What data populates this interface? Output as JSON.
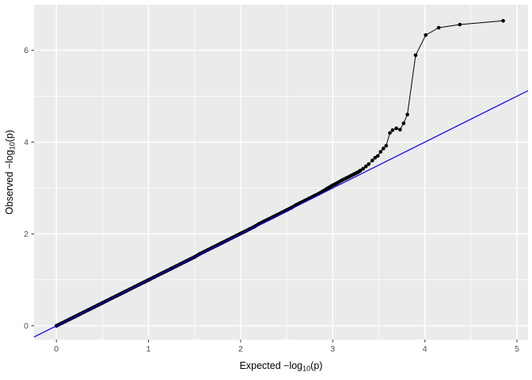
{
  "chart_data": {
    "type": "scatter",
    "title": "",
    "xlabel": {
      "parts": [
        "Expected  −log",
        "10",
        "(p)"
      ],
      "plain": "Expected −log10(p)"
    },
    "ylabel": {
      "parts": [
        "Observed  −log",
        "10",
        "(p)"
      ],
      "plain": "Observed −log10(p)"
    },
    "xlim": [
      -0.2425,
      5.12
    ],
    "ylim": [
      -0.3,
      6.99
    ],
    "x_ticks": [
      0,
      1,
      2,
      3,
      4,
      5
    ],
    "x_tick_labels": [
      "0",
      "1",
      "2",
      "3",
      "4",
      "5"
    ],
    "y_ticks": [
      0,
      2,
      4,
      6
    ],
    "y_tick_labels": [
      "0",
      "2",
      "4",
      "6"
    ],
    "x_minor": [
      0.5,
      1.5,
      2.5,
      3.5,
      4.5
    ],
    "y_minor": [
      1,
      3,
      5
    ],
    "grid": true,
    "legend_position": "none",
    "abline": {
      "intercept": 0,
      "slope": 1,
      "color": "#0000F0",
      "width": 1.2
    },
    "colors": {
      "panel_background": "#EBEBEB",
      "outer_background": "#FFFFFF",
      "grid_major": "#FFFFFF",
      "grid_minor": "#FFFFFF",
      "points": "#000000",
      "tick_marks": "#333333",
      "tick_labels": "#4D4D4D",
      "axis_titles": "#000000"
    },
    "series": [
      {
        "name": "observed-vs-expected-dense-band",
        "style": "band",
        "points": [
          [
            0,
            0
          ],
          [
            0.05,
            0.05
          ],
          [
            0.1,
            0.1
          ],
          [
            0.15,
            0.15
          ],
          [
            0.2,
            0.2
          ],
          [
            0.25,
            0.25
          ],
          [
            0.3,
            0.3
          ],
          [
            0.35,
            0.35
          ],
          [
            0.4,
            0.4
          ],
          [
            0.45,
            0.45
          ],
          [
            0.5,
            0.5
          ],
          [
            0.55,
            0.55
          ],
          [
            0.6,
            0.6
          ],
          [
            0.65,
            0.65
          ],
          [
            0.7,
            0.7
          ],
          [
            0.75,
            0.75
          ],
          [
            0.8,
            0.8
          ],
          [
            0.85,
            0.85
          ],
          [
            0.9,
            0.9
          ],
          [
            0.95,
            0.95
          ],
          [
            1,
            1
          ],
          [
            1.05,
            1.05
          ],
          [
            1.1,
            1.1
          ],
          [
            1.15,
            1.15
          ],
          [
            1.2,
            1.2
          ],
          [
            1.25,
            1.25
          ],
          [
            1.3,
            1.3
          ],
          [
            1.35,
            1.35
          ],
          [
            1.4,
            1.4
          ],
          [
            1.45,
            1.45
          ],
          [
            1.5,
            1.5
          ],
          [
            1.55,
            1.56
          ],
          [
            1.6,
            1.61
          ],
          [
            1.65,
            1.66
          ],
          [
            1.7,
            1.71
          ],
          [
            1.75,
            1.76
          ],
          [
            1.8,
            1.81
          ],
          [
            1.85,
            1.86
          ],
          [
            1.9,
            1.91
          ],
          [
            1.95,
            1.96
          ],
          [
            2,
            2.01
          ],
          [
            2.05,
            2.06
          ],
          [
            2.1,
            2.11
          ],
          [
            2.15,
            2.16
          ],
          [
            2.2,
            2.22
          ],
          [
            2.25,
            2.27
          ],
          [
            2.3,
            2.32
          ],
          [
            2.35,
            2.37
          ],
          [
            2.4,
            2.42
          ],
          [
            2.45,
            2.47
          ],
          [
            2.5,
            2.52
          ],
          [
            2.55,
            2.57
          ],
          [
            2.6,
            2.63
          ],
          [
            2.65,
            2.68
          ],
          [
            2.7,
            2.73
          ],
          [
            2.75,
            2.78
          ],
          [
            2.8,
            2.83
          ],
          [
            2.85,
            2.88
          ],
          [
            2.9,
            2.94
          ],
          [
            2.95,
            3
          ],
          [
            3,
            3.06
          ],
          [
            3.05,
            3.11
          ],
          [
            3.1,
            3.17
          ],
          [
            3.15,
            3.22
          ],
          [
            3.2,
            3.27
          ],
          [
            3.24,
            3.31
          ],
          [
            3.27,
            3.34
          ],
          [
            3.3,
            3.38
          ]
        ]
      },
      {
        "name": "observed-vs-expected-tail",
        "style": "line-dots",
        "points": [
          [
            3.3,
            3.38
          ],
          [
            3.33,
            3.42
          ],
          [
            3.36,
            3.47
          ],
          [
            3.39,
            3.52
          ],
          [
            3.43,
            3.6
          ],
          [
            3.46,
            3.66
          ],
          [
            3.49,
            3.7
          ],
          [
            3.52,
            3.79
          ],
          [
            3.55,
            3.86
          ],
          [
            3.58,
            3.92
          ],
          [
            3.62,
            4.2
          ],
          [
            3.65,
            4.26
          ],
          [
            3.69,
            4.3
          ],
          [
            3.73,
            4.27
          ],
          [
            3.77,
            4.41
          ],
          [
            3.81,
            4.6
          ],
          [
            3.9,
            5.89
          ],
          [
            4.01,
            6.33
          ],
          [
            4.15,
            6.49
          ],
          [
            4.38,
            6.56
          ],
          [
            4.85,
            6.64
          ]
        ]
      }
    ]
  }
}
